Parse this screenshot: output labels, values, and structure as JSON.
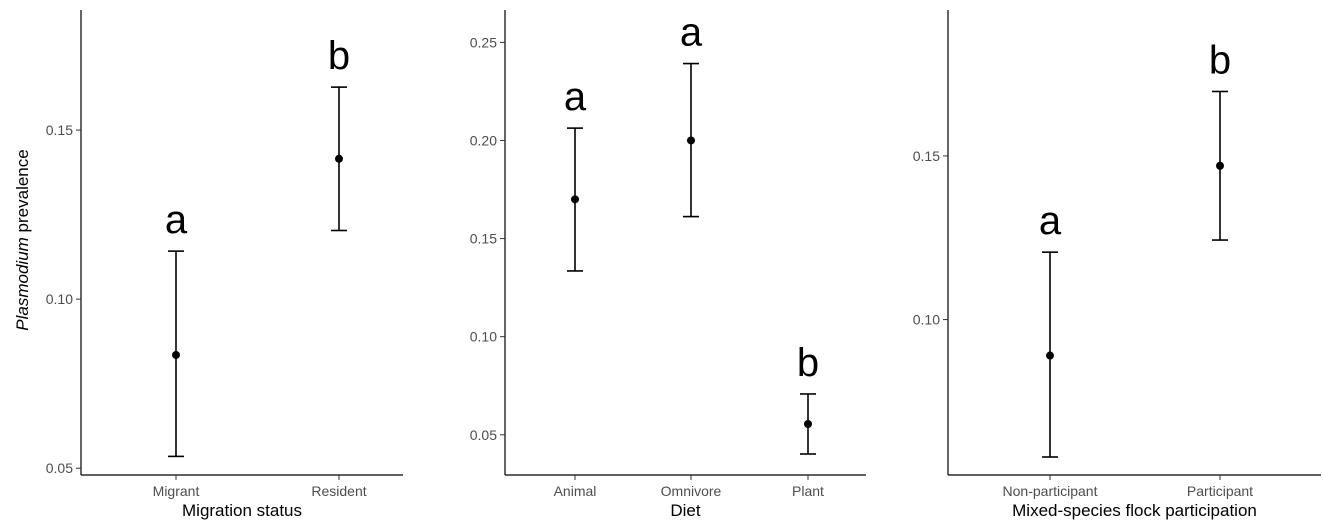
{
  "ylabel_italic": "Plasmodium",
  "ylabel_rest": " prevalence",
  "chart_data": [
    {
      "type": "scatter",
      "xlabel": "Migration status",
      "categories": [
        "Migrant",
        "Resident"
      ],
      "values": [
        0.0835,
        0.1415
      ],
      "lower": [
        0.0535,
        0.1203
      ],
      "upper": [
        0.1142,
        0.1627
      ],
      "letters": [
        "a",
        "b"
      ],
      "yticks": [
        0.05,
        0.1,
        0.15
      ],
      "ytick_labels": [
        "0.05",
        "0.10",
        "0.15"
      ],
      "ylim": [
        0.048,
        0.1855
      ]
    },
    {
      "type": "scatter",
      "xlabel": "Diet",
      "categories": [
        "Animal",
        "Omnivore",
        "Plant"
      ],
      "values": [
        0.17,
        0.2,
        0.0555
      ],
      "lower": [
        0.1335,
        0.1612,
        0.0402
      ],
      "upper": [
        0.2063,
        0.2392,
        0.0708
      ],
      "letters": [
        "a",
        "a",
        "b"
      ],
      "yticks": [
        0.05,
        0.1,
        0.15,
        0.2,
        0.25
      ],
      "ytick_labels": [
        "0.05",
        "0.10",
        "0.15",
        "0.20",
        "0.25"
      ],
      "ylim": [
        0.0295,
        0.2665
      ]
    },
    {
      "type": "scatter",
      "xlabel": "Mixed-species flock participation",
      "categories": [
        "Non-participant",
        "Participant"
      ],
      "values": [
        0.089,
        0.147
      ],
      "lower": [
        0.058,
        0.1243
      ],
      "upper": [
        0.1206,
        0.1697
      ],
      "letters": [
        "a",
        "b"
      ],
      "yticks": [
        0.1,
        0.15
      ],
      "ytick_labels": [
        "0.10",
        "0.15"
      ],
      "ylim": [
        0.0525,
        0.1946
      ]
    }
  ]
}
